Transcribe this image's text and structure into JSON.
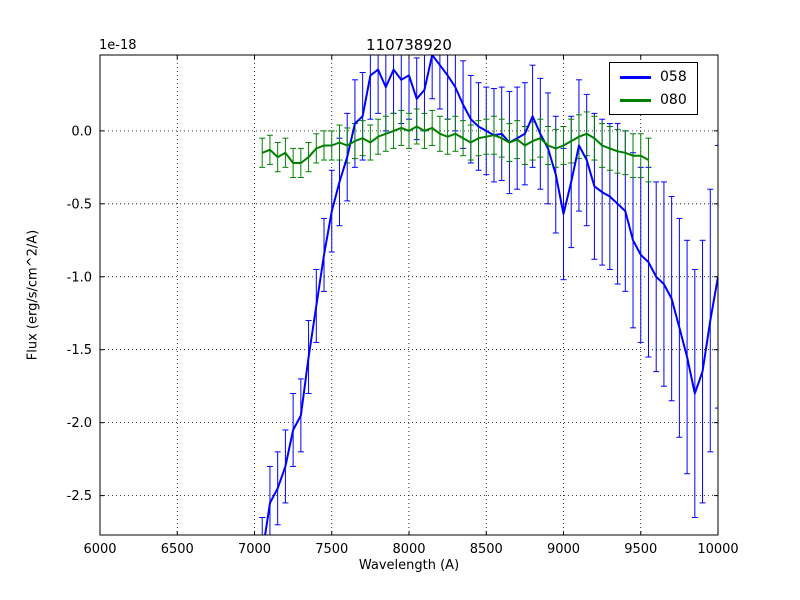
{
  "figure": {
    "title": "110738920",
    "xlabel": "Wavelength (A)",
    "ylabel": "Flux (erg/s/cm^2/A)",
    "offset_text": "1e-18",
    "background_color": "#ffffff",
    "frame_color": "#000000"
  },
  "legend": {
    "entries": [
      {
        "label": "058",
        "color": "#0000ff"
      },
      {
        "label": "080",
        "color": "#008000"
      }
    ]
  },
  "chart_data": {
    "type": "line",
    "title": "110738920",
    "xlabel": "Wavelength (A)",
    "ylabel": "Flux (erg/s/cm^2/A)",
    "y_offset_factor": "1e-18",
    "xlim": [
      6000,
      10000
    ],
    "ylim": [
      -2.77,
      0.52
    ],
    "xticks": [
      6000,
      6500,
      7000,
      7500,
      8000,
      8500,
      9000,
      9500,
      10000
    ],
    "yticks": [
      0.0,
      -0.5,
      -1.0,
      -1.5,
      -2.0,
      -2.5
    ],
    "grid": true,
    "grid_style": "dotted",
    "legend_position": "upper right",
    "series": [
      {
        "name": "058",
        "color": "#0000ff",
        "line_width": 2,
        "x": [
          7050,
          7100,
          7150,
          7200,
          7250,
          7300,
          7350,
          7400,
          7450,
          7500,
          7550,
          7600,
          7650,
          7700,
          7750,
          7800,
          7850,
          7900,
          7950,
          8000,
          8050,
          8100,
          8150,
          8200,
          8250,
          8300,
          8350,
          8400,
          8450,
          8500,
          8550,
          8600,
          8650,
          8700,
          8750,
          8800,
          8850,
          8900,
          8950,
          9000,
          9050,
          9100,
          9150,
          9200,
          9250,
          9300,
          9350,
          9400,
          9450,
          9500,
          9550,
          9600,
          9650,
          9700,
          9750,
          9800,
          9850,
          9900,
          9950,
          10000
        ],
        "y": [
          -2.9,
          -2.55,
          -2.45,
          -2.3,
          -2.05,
          -1.95,
          -1.55,
          -1.2,
          -0.85,
          -0.55,
          -0.35,
          -0.18,
          0.05,
          0.1,
          0.38,
          0.42,
          0.3,
          0.42,
          0.35,
          0.38,
          0.22,
          0.28,
          0.52,
          0.45,
          0.38,
          0.3,
          0.18,
          0.08,
          0.03,
          0.0,
          -0.03,
          -0.02,
          -0.08,
          -0.05,
          -0.02,
          0.1,
          -0.02,
          -0.12,
          -0.3,
          -0.57,
          -0.35,
          -0.1,
          -0.2,
          -0.38,
          -0.42,
          -0.45,
          -0.5,
          -0.55,
          -0.75,
          -0.85,
          -0.9,
          -1.0,
          -1.05,
          -1.15,
          -1.35,
          -1.55,
          -1.8,
          -1.65,
          -1.3,
          -1.0
        ],
        "yerr": [
          0.25,
          0.25,
          0.25,
          0.25,
          0.25,
          0.25,
          0.25,
          0.25,
          0.25,
          0.28,
          0.3,
          0.3,
          0.3,
          0.3,
          0.3,
          0.3,
          0.3,
          0.3,
          0.3,
          0.3,
          0.28,
          0.28,
          0.3,
          0.3,
          0.3,
          0.3,
          0.3,
          0.3,
          0.3,
          0.3,
          0.32,
          0.32,
          0.35,
          0.35,
          0.35,
          0.35,
          0.38,
          0.38,
          0.4,
          0.45,
          0.45,
          0.45,
          0.45,
          0.5,
          0.5,
          0.5,
          0.55,
          0.55,
          0.6,
          0.6,
          0.65,
          0.65,
          0.7,
          0.7,
          0.75,
          0.8,
          0.85,
          0.9,
          0.9,
          0.9
        ]
      },
      {
        "name": "080",
        "color": "#008000",
        "line_width": 2,
        "x": [
          7050,
          7100,
          7150,
          7200,
          7250,
          7300,
          7350,
          7400,
          7450,
          7500,
          7550,
          7600,
          7650,
          7700,
          7750,
          7800,
          7850,
          7900,
          7950,
          8000,
          8050,
          8100,
          8150,
          8200,
          8250,
          8300,
          8350,
          8400,
          8450,
          8500,
          8550,
          8600,
          8650,
          8700,
          8750,
          8800,
          8850,
          8900,
          8950,
          9000,
          9050,
          9100,
          9150,
          9200,
          9250,
          9300,
          9350,
          9400,
          9450,
          9500,
          9550
        ],
        "y": [
          -0.15,
          -0.13,
          -0.18,
          -0.15,
          -0.22,
          -0.22,
          -0.18,
          -0.12,
          -0.1,
          -0.1,
          -0.08,
          -0.1,
          -0.07,
          -0.05,
          -0.08,
          -0.04,
          -0.02,
          0.0,
          0.02,
          0.0,
          0.03,
          0.0,
          0.02,
          -0.02,
          -0.04,
          -0.02,
          -0.05,
          -0.08,
          -0.05,
          -0.04,
          -0.03,
          -0.05,
          -0.08,
          -0.06,
          -0.1,
          -0.07,
          -0.05,
          -0.1,
          -0.12,
          -0.1,
          -0.07,
          -0.04,
          -0.02,
          -0.05,
          -0.1,
          -0.12,
          -0.14,
          -0.15,
          -0.17,
          -0.17,
          -0.2
        ],
        "yerr": [
          0.1,
          0.1,
          0.1,
          0.1,
          0.1,
          0.1,
          0.1,
          0.1,
          0.1,
          0.1,
          0.12,
          0.12,
          0.12,
          0.12,
          0.12,
          0.12,
          0.12,
          0.12,
          0.12,
          0.12,
          0.12,
          0.12,
          0.12,
          0.12,
          0.12,
          0.12,
          0.12,
          0.12,
          0.12,
          0.12,
          0.13,
          0.13,
          0.13,
          0.13,
          0.13,
          0.13,
          0.13,
          0.13,
          0.13,
          0.13,
          0.15,
          0.15,
          0.15,
          0.15,
          0.15,
          0.15,
          0.15,
          0.15,
          0.15,
          0.15,
          0.15
        ]
      }
    ]
  }
}
